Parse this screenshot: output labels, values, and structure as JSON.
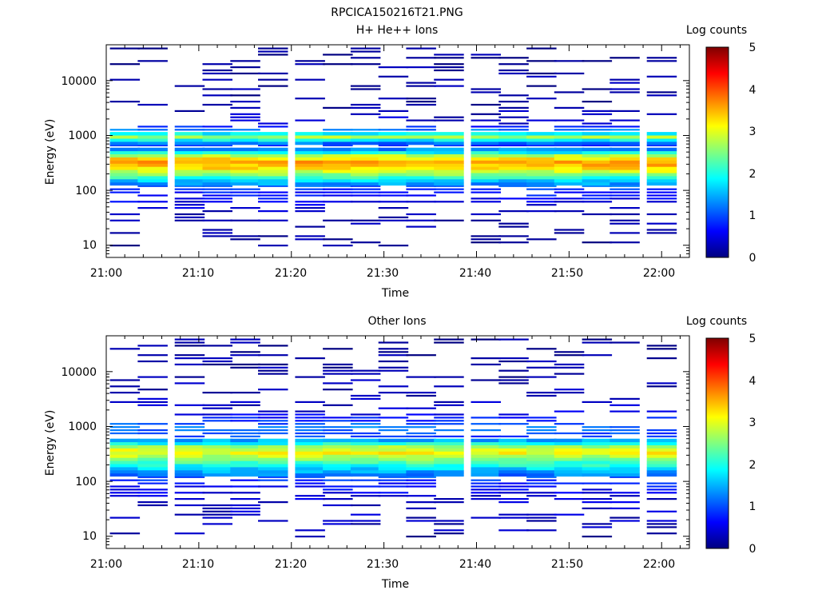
{
  "figure_title": "RPCICA150216T21.PNG",
  "chart_data": [
    {
      "type": "heatmap",
      "title": "H+ He++ Ions",
      "xlabel": "Time",
      "ylabel": "Energy (eV)",
      "colorbar_label": "Log counts",
      "colorbar_ticks": [
        "0",
        "1",
        "2",
        "3",
        "4",
        "5"
      ],
      "x_ticks": [
        "21:00",
        "21:10",
        "21:20",
        "21:30",
        "21:40",
        "21:50",
        "22:00"
      ],
      "y_ticks": [
        "10",
        "100",
        "1000",
        "10000"
      ],
      "y_scale": "log",
      "xlim": [
        "21:00",
        "22:03"
      ],
      "ylim": [
        6,
        45000
      ],
      "zlim": [
        0,
        5
      ],
      "colormap": "jet",
      "columns": [
        "21:02",
        "21:05",
        "21:09",
        "21:12",
        "21:15",
        "21:18",
        "21:22",
        "21:25",
        "21:28",
        "21:31",
        "21:34",
        "21:37",
        "21:41",
        "21:44",
        "21:47",
        "21:50",
        "21:53",
        "21:56",
        "22:00"
      ],
      "band_profile": [
        {
          "energy_eV": 11,
          "log_counts": 0.1
        },
        {
          "energy_eV": 20,
          "log_counts": 0.2
        },
        {
          "energy_eV": 40,
          "log_counts": 0.3
        },
        {
          "energy_eV": 100,
          "log_counts": 0.8
        },
        {
          "energy_eV": 150,
          "log_counts": 1.6
        },
        {
          "energy_eV": 200,
          "log_counts": 2.6
        },
        {
          "energy_eV": 270,
          "log_counts": 3.4
        },
        {
          "energy_eV": 330,
          "log_counts": 3.6
        },
        {
          "energy_eV": 420,
          "log_counts": 3.0
        },
        {
          "energy_eV": 500,
          "log_counts": 1.8
        },
        {
          "energy_eV": 650,
          "log_counts": 0.7
        },
        {
          "energy_eV": 800,
          "log_counts": 1.6
        },
        {
          "energy_eV": 950,
          "log_counts": 2.7
        },
        {
          "energy_eV": 1150,
          "log_counts": 1.4
        },
        {
          "energy_eV": 1600,
          "log_counts": 0.4
        },
        {
          "energy_eV": 3000,
          "log_counts": 0.2
        },
        {
          "energy_eV": 10000,
          "log_counts": 0.15
        },
        {
          "energy_eV": 35000,
          "log_counts": 0.1
        }
      ]
    },
    {
      "type": "heatmap",
      "title": "Other Ions",
      "xlabel": "Time",
      "ylabel": "Energy (eV)",
      "colorbar_label": "Log counts",
      "colorbar_ticks": [
        "0",
        "1",
        "2",
        "3",
        "4",
        "5"
      ],
      "x_ticks": [
        "21:00",
        "21:10",
        "21:20",
        "21:30",
        "21:40",
        "21:50",
        "22:00"
      ],
      "y_ticks": [
        "10",
        "100",
        "1000",
        "10000"
      ],
      "y_scale": "log",
      "xlim": [
        "21:00",
        "22:03"
      ],
      "ylim": [
        6,
        45000
      ],
      "zlim": [
        0,
        5
      ],
      "colormap": "jet",
      "columns": [
        "21:02",
        "21:05",
        "21:09",
        "21:12",
        "21:15",
        "21:18",
        "21:22",
        "21:25",
        "21:28",
        "21:31",
        "21:34",
        "21:37",
        "21:41",
        "21:44",
        "21:47",
        "21:50",
        "21:53",
        "21:56",
        "22:00"
      ],
      "band_profile": [
        {
          "energy_eV": 8,
          "log_counts": 0.15
        },
        {
          "energy_eV": 20,
          "log_counts": 0.3
        },
        {
          "energy_eV": 50,
          "log_counts": 0.4
        },
        {
          "energy_eV": 100,
          "log_counts": 0.8
        },
        {
          "energy_eV": 150,
          "log_counts": 1.4
        },
        {
          "energy_eV": 200,
          "log_counts": 2.0
        },
        {
          "energy_eV": 270,
          "log_counts": 2.6
        },
        {
          "energy_eV": 330,
          "log_counts": 3.1
        },
        {
          "energy_eV": 420,
          "log_counts": 2.8
        },
        {
          "energy_eV": 500,
          "log_counts": 1.9
        },
        {
          "energy_eV": 650,
          "log_counts": 0.9
        },
        {
          "energy_eV": 950,
          "log_counts": 1.2
        },
        {
          "energy_eV": 1500,
          "log_counts": 0.6
        },
        {
          "energy_eV": 2000,
          "log_counts": 0.3
        },
        {
          "energy_eV": 28000,
          "log_counts": 0.1
        }
      ]
    }
  ]
}
